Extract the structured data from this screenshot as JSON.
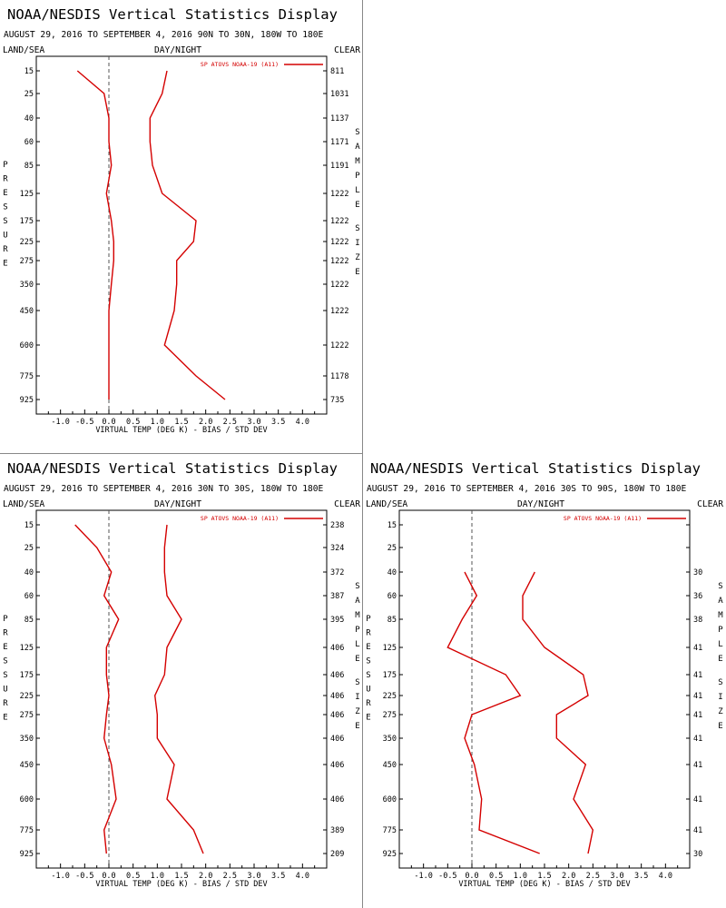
{
  "colors": {
    "series": "#d40000",
    "axis": "#000000",
    "zero_line": "#555555",
    "divider": "#888888"
  },
  "common": {
    "title": "NOAA/NESDIS Vertical Statistics Display",
    "date_range": "AUGUST 29, 2016 TO SEPTEMBER 4, 2016",
    "land_sea": "LAND/SEA",
    "day_night": "DAY/NIGHT",
    "clear": "CLEAR",
    "ylabel_left": "PRESSURE",
    "ylabel_right": "SAMPLE SIZE",
    "xlabel": "VIRTUAL TEMP (DEG K) - BIAS / STD DEV",
    "legend": "SP ATOVS NOAA-19 (A11)",
    "legend_position": "top-right",
    "xlim": [
      -1.5,
      4.5
    ],
    "xticks": [
      "-1.0",
      "-0.5",
      "0.0",
      "0.5",
      "1.0",
      "1.5",
      "2.0",
      "2.5",
      "3.0",
      "3.5",
      "4.0"
    ],
    "pressure_levels": [
      "15",
      "25",
      "40",
      "60",
      "85",
      "125",
      "175",
      "225",
      "275",
      "350",
      "450",
      "600",
      "775",
      "925"
    ]
  },
  "chart_data": [
    {
      "type": "line",
      "region": "90N TO 30N, 180W TO 180E",
      "y": [
        15,
        25,
        40,
        60,
        85,
        125,
        175,
        225,
        275,
        350,
        450,
        600,
        775,
        925
      ],
      "sample_sizes": [
        "811",
        "1031",
        "1137",
        "1171",
        "1191",
        "1222",
        "1222",
        "1222",
        "1222",
        "1222",
        "1222",
        "1222",
        "1178",
        "735"
      ],
      "series": [
        {
          "values": [
            -0.65,
            -0.1,
            0.0,
            0.0,
            0.05,
            -0.05,
            0.05,
            0.1,
            0.1,
            0.05,
            0.0,
            0.0,
            0.0,
            0.0
          ]
        },
        {
          "values": [
            1.2,
            1.1,
            0.85,
            0.85,
            0.9,
            1.1,
            1.8,
            1.75,
            1.4,
            1.4,
            1.35,
            1.15,
            1.8,
            2.4
          ]
        }
      ]
    },
    {
      "type": "line",
      "region": "30N TO 30S, 180W TO 180E",
      "y": [
        15,
        25,
        40,
        60,
        85,
        125,
        175,
        225,
        275,
        350,
        450,
        600,
        775,
        925
      ],
      "sample_sizes": [
        "238",
        "324",
        "372",
        "387",
        "395",
        "406",
        "406",
        "406",
        "406",
        "406",
        "406",
        "406",
        "389",
        "209"
      ],
      "series": [
        {
          "values": [
            -0.7,
            -0.25,
            0.05,
            -0.1,
            0.2,
            -0.05,
            -0.05,
            0.0,
            -0.05,
            -0.1,
            0.05,
            0.15,
            -0.1,
            -0.05
          ]
        },
        {
          "values": [
            1.2,
            1.15,
            1.15,
            1.2,
            1.5,
            1.2,
            1.15,
            0.95,
            1.0,
            1.0,
            1.35,
            1.2,
            1.75,
            1.95
          ]
        }
      ]
    },
    {
      "type": "line",
      "region": "30S TO 90S, 180W TO 180E",
      "y": [
        40,
        60,
        85,
        125,
        175,
        225,
        275,
        350,
        450,
        600,
        775,
        925
      ],
      "sample_sizes": [
        "30",
        "36",
        "38",
        "41",
        "41",
        "41",
        "41",
        "41",
        "41",
        "41",
        "41",
        "30"
      ],
      "series": [
        {
          "values": [
            -0.15,
            0.1,
            -0.2,
            -0.5,
            0.7,
            1.0,
            0.0,
            -0.15,
            0.05,
            0.2,
            0.15,
            1.4
          ]
        },
        {
          "values": [
            1.3,
            1.05,
            1.05,
            1.5,
            2.3,
            2.4,
            1.75,
            1.75,
            2.35,
            2.1,
            2.5,
            2.4
          ]
        }
      ]
    }
  ]
}
